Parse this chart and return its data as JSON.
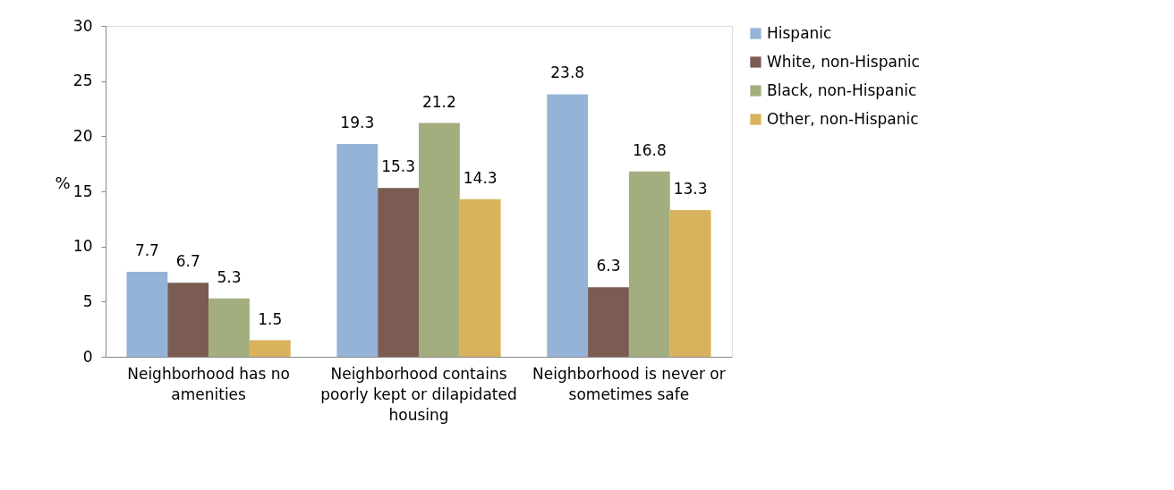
{
  "chart_data": {
    "type": "bar",
    "categories": [
      "Neighborhood has no amenities",
      "Neighborhood contains poorly kept or dilapidated housing",
      "Neighborhood is never or sometimes safe"
    ],
    "series": [
      {
        "name": "Hispanic",
        "color": "#95b3d7",
        "values": [
          7.7,
          19.3,
          23.8
        ]
      },
      {
        "name": "White, non-Hispanic",
        "color": "#7a5c52",
        "values": [
          6.7,
          15.3,
          6.3
        ]
      },
      {
        "name": "Black, non-Hispanic",
        "color": "#a3ae7f",
        "values": [
          5.3,
          21.2,
          16.8
        ]
      },
      {
        "name": "Other, non-Hispanic",
        "color": "#d8b25c",
        "values": [
          1.5,
          14.3,
          13.3
        ]
      }
    ],
    "ylabel": "%",
    "ylim": [
      0,
      30
    ],
    "yticks": [
      0,
      5,
      10,
      15,
      20,
      25,
      30
    ],
    "data_labels": true,
    "legend": "right",
    "grid": false
  }
}
